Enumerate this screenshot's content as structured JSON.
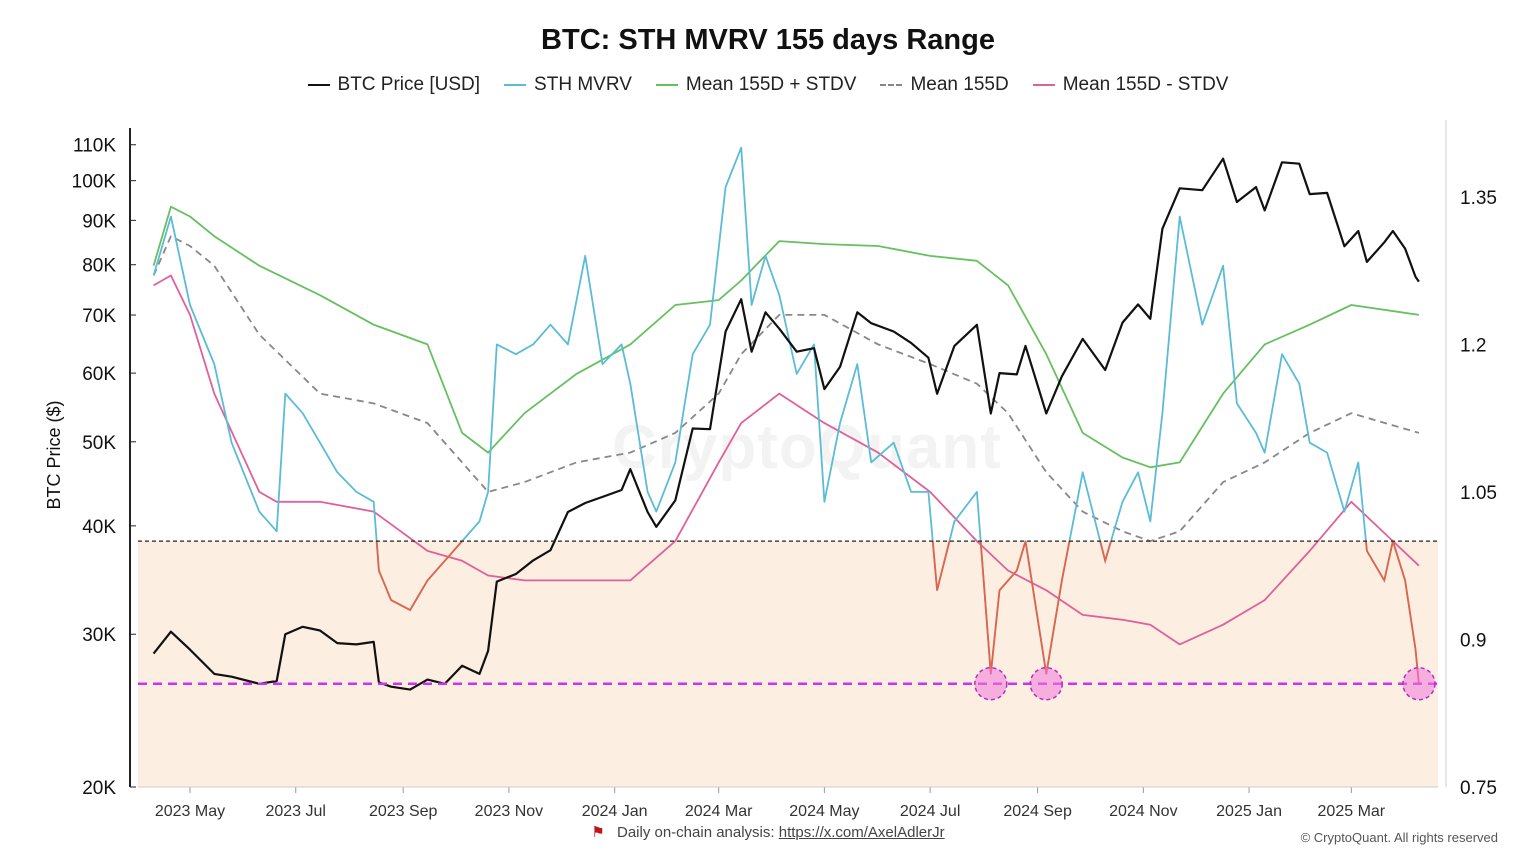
{
  "title": "BTC: STH MVRV 155 days Range",
  "legend": [
    {
      "label": "BTC Price [USD]",
      "color": "#111111",
      "dash": false
    },
    {
      "label": "STH MVRV",
      "color": "#5bbcd6",
      "dash": false
    },
    {
      "label": "Mean 155D + STDV",
      "color": "#66c060",
      "dash": false
    },
    {
      "label": "Mean 155D",
      "color": "#888888",
      "dash": true
    },
    {
      "label": "Mean 155D - STDV",
      "color": "#e0609a",
      "dash": false
    }
  ],
  "watermark": "CryptoQuant",
  "footer": {
    "text": "Daily on-chain analysis: ",
    "link": "https://x.com/AxelAdlerJr",
    "copyright": "© CryptoQuant. All rights reserved"
  },
  "chart_data": {
    "type": "line",
    "title": "BTC: STH MVRV 155 days Range",
    "ylabel": "BTC Price ($)",
    "y_scale": "log",
    "ylim": [
      20000,
      115000
    ],
    "y_ticks": [
      {
        "value": 20000,
        "label": "20K"
      },
      {
        "value": 30000,
        "label": "30K"
      },
      {
        "value": 40000,
        "label": "40K"
      },
      {
        "value": 50000,
        "label": "50K"
      },
      {
        "value": 60000,
        "label": "60K"
      },
      {
        "value": 70000,
        "label": "70K"
      },
      {
        "value": 80000,
        "label": "80K"
      },
      {
        "value": 90000,
        "label": "90K"
      },
      {
        "value": 100000,
        "label": "100K"
      },
      {
        "value": 110000,
        "label": "110K"
      }
    ],
    "y2lim": [
      0.75,
      1.42
    ],
    "y2_ticks": [
      {
        "value": 0.75,
        "label": "0.75"
      },
      {
        "value": 0.9,
        "label": "0.9"
      },
      {
        "value": 1.05,
        "label": "1.05"
      },
      {
        "value": 1.2,
        "label": "1.2"
      },
      {
        "value": 1.35,
        "label": "1.35"
      }
    ],
    "x_ticks": [
      "2023 May",
      "2023 Jul",
      "2023 Sep",
      "2023 Nov",
      "2024 Jan",
      "2024 Mar",
      "2024 May",
      "2024 Jul",
      "2024 Sep",
      "2024 Nov",
      "2025 Jan",
      "2025 Mar"
    ],
    "xlim": [
      "2023-04-01",
      "2025-04-20"
    ],
    "grid": false,
    "legend_position": "top",
    "reference_lines": [
      {
        "axis": "y2",
        "value": 1.0,
        "style": "dotted",
        "color": "#222222"
      },
      {
        "axis": "y2",
        "value": 0.855,
        "style": "dashed",
        "color": "#cc33ee"
      }
    ],
    "shaded_region": {
      "axis": "y2",
      "from": 0.75,
      "to": 1.0,
      "color": "#fcefe1"
    },
    "highlights": [
      {
        "x": "2024-08-05",
        "y2": 0.855
      },
      {
        "x": "2024-09-06",
        "y2": 0.855
      },
      {
        "x": "2025-04-09",
        "y2": 0.855
      }
    ],
    "series": [
      {
        "name": "BTC Price [USD]",
        "axis": "y",
        "color": "#111111",
        "x": [
          "2023-04-10",
          "2023-04-20",
          "2023-05-01",
          "2023-05-15",
          "2023-05-25",
          "2023-06-10",
          "2023-06-20",
          "2023-06-25",
          "2023-07-05",
          "2023-07-15",
          "2023-07-25",
          "2023-08-05",
          "2023-08-15",
          "2023-08-18",
          "2023-08-25",
          "2023-09-05",
          "2023-09-15",
          "2023-09-25",
          "2023-10-05",
          "2023-10-15",
          "2023-10-20",
          "2023-10-25",
          "2023-11-05",
          "2023-11-15",
          "2023-11-25",
          "2023-12-05",
          "2023-12-15",
          "2023-12-25",
          "2024-01-05",
          "2024-01-10",
          "2024-01-20",
          "2024-01-25",
          "2024-02-05",
          "2024-02-15",
          "2024-02-25",
          "2024-03-05",
          "2024-03-14",
          "2024-03-20",
          "2024-03-28",
          "2024-04-05",
          "2024-04-15",
          "2024-04-25",
          "2024-05-01",
          "2024-05-10",
          "2024-05-20",
          "2024-05-28",
          "2024-06-10",
          "2024-06-20",
          "2024-06-30",
          "2024-07-05",
          "2024-07-15",
          "2024-07-28",
          "2024-08-05",
          "2024-08-10",
          "2024-08-20",
          "2024-08-25",
          "2024-09-06",
          "2024-09-15",
          "2024-09-27",
          "2024-10-10",
          "2024-10-20",
          "2024-10-29",
          "2024-11-05",
          "2024-11-12",
          "2024-11-22",
          "2024-12-05",
          "2024-12-17",
          "2024-12-25",
          "2025-01-05",
          "2025-01-10",
          "2025-01-20",
          "2025-01-30",
          "2025-02-05",
          "2025-02-15",
          "2025-02-25",
          "2025-03-05",
          "2025-03-10",
          "2025-03-20",
          "2025-03-25",
          "2025-04-01",
          "2025-04-07",
          "2025-04-09"
        ],
        "values": [
          28500,
          30200,
          28800,
          27000,
          26800,
          26300,
          26500,
          30000,
          30600,
          30300,
          29300,
          29200,
          29400,
          26400,
          26100,
          25900,
          26600,
          26300,
          27600,
          27000,
          28700,
          34500,
          35200,
          36500,
          37500,
          41500,
          42500,
          43200,
          44000,
          46500,
          41500,
          39900,
          42800,
          51800,
          51700,
          67000,
          73000,
          63500,
          70500,
          67500,
          63500,
          64100,
          57500,
          61000,
          70500,
          68500,
          67000,
          65000,
          62500,
          56800,
          64500,
          68200,
          53900,
          60000,
          59800,
          64500,
          53900,
          59500,
          65700,
          60500,
          68600,
          72000,
          69300,
          88000,
          98000,
          97500,
          106000,
          94500,
          98300,
          92400,
          105000,
          104600,
          96500,
          96800,
          84000,
          87500,
          80600,
          84900,
          87500,
          83500,
          77500,
          76500
        ]
      },
      {
        "name": "STH MVRV",
        "axis": "y2",
        "color": "#5bbcd6",
        "x": [
          "2023-04-10",
          "2023-04-20",
          "2023-05-01",
          "2023-05-15",
          "2023-05-25",
          "2023-06-10",
          "2023-06-20",
          "2023-06-25",
          "2023-07-05",
          "2023-07-15",
          "2023-07-25",
          "2023-08-05",
          "2023-08-15",
          "2023-08-18",
          "2023-08-25",
          "2023-09-05",
          "2023-09-15",
          "2023-09-25",
          "2023-10-05",
          "2023-10-15",
          "2023-10-20",
          "2023-10-25",
          "2023-11-05",
          "2023-11-15",
          "2023-11-25",
          "2023-12-05",
          "2023-12-15",
          "2023-12-25",
          "2024-01-05",
          "2024-01-10",
          "2024-01-20",
          "2024-01-25",
          "2024-02-05",
          "2024-02-15",
          "2024-02-25",
          "2024-03-05",
          "2024-03-14",
          "2024-03-20",
          "2024-03-28",
          "2024-04-05",
          "2024-04-15",
          "2024-04-25",
          "2024-05-01",
          "2024-05-10",
          "2024-05-20",
          "2024-05-28",
          "2024-06-10",
          "2024-06-20",
          "2024-06-30",
          "2024-07-05",
          "2024-07-15",
          "2024-07-28",
          "2024-08-05",
          "2024-08-10",
          "2024-08-20",
          "2024-08-25",
          "2024-09-06",
          "2024-09-15",
          "2024-09-27",
          "2024-10-10",
          "2024-10-20",
          "2024-10-29",
          "2024-11-05",
          "2024-11-12",
          "2024-11-22",
          "2024-12-05",
          "2024-12-17",
          "2024-12-25",
          "2025-01-05",
          "2025-01-10",
          "2025-01-20",
          "2025-01-30",
          "2025-02-05",
          "2025-02-15",
          "2025-02-25",
          "2025-03-05",
          "2025-03-10",
          "2025-03-20",
          "2025-03-25",
          "2025-04-01",
          "2025-04-07",
          "2025-04-09"
        ],
        "values": [
          1.27,
          1.33,
          1.24,
          1.18,
          1.1,
          1.03,
          1.01,
          1.15,
          1.13,
          1.1,
          1.07,
          1.05,
          1.04,
          0.97,
          0.94,
          0.93,
          0.96,
          0.98,
          1.0,
          1.02,
          1.05,
          1.2,
          1.19,
          1.2,
          1.22,
          1.2,
          1.29,
          1.18,
          1.2,
          1.16,
          1.05,
          1.03,
          1.08,
          1.19,
          1.22,
          1.36,
          1.4,
          1.24,
          1.29,
          1.25,
          1.17,
          1.2,
          1.04,
          1.12,
          1.18,
          1.08,
          1.1,
          1.05,
          1.05,
          0.95,
          1.02,
          1.05,
          0.865,
          0.95,
          0.97,
          1.0,
          0.865,
          0.96,
          1.07,
          0.98,
          1.04,
          1.07,
          1.02,
          1.13,
          1.33,
          1.22,
          1.28,
          1.14,
          1.11,
          1.09,
          1.19,
          1.16,
          1.1,
          1.09,
          1.03,
          1.08,
          0.99,
          0.96,
          1.0,
          0.96,
          0.89,
          0.855
        ]
      },
      {
        "name": "Mean 155D + STDV",
        "axis": "y2",
        "color": "#66c060",
        "x": [
          "2023-04-10",
          "2023-04-20",
          "2023-05-01",
          "2023-05-15",
          "2023-06-10",
          "2023-07-15",
          "2023-08-15",
          "2023-09-15",
          "2023-10-05",
          "2023-10-20",
          "2023-11-10",
          "2023-12-10",
          "2024-01-10",
          "2024-02-05",
          "2024-03-01",
          "2024-03-14",
          "2024-04-05",
          "2024-05-01",
          "2024-06-01",
          "2024-07-01",
          "2024-07-28",
          "2024-08-15",
          "2024-09-06",
          "2024-09-27",
          "2024-10-20",
          "2024-11-05",
          "2024-11-22",
          "2024-12-17",
          "2025-01-10",
          "2025-02-05",
          "2025-03-01",
          "2025-04-09"
        ],
        "values": [
          1.28,
          1.34,
          1.33,
          1.31,
          1.28,
          1.25,
          1.22,
          1.2,
          1.11,
          1.09,
          1.13,
          1.17,
          1.2,
          1.24,
          1.245,
          1.265,
          1.305,
          1.302,
          1.3,
          1.29,
          1.285,
          1.26,
          1.19,
          1.11,
          1.085,
          1.075,
          1.08,
          1.15,
          1.2,
          1.22,
          1.24,
          1.23
        ]
      },
      {
        "name": "Mean 155D",
        "axis": "y2",
        "color": "#888888",
        "x": [
          "2023-04-10",
          "2023-04-20",
          "2023-05-01",
          "2023-05-15",
          "2023-06-10",
          "2023-07-15",
          "2023-08-15",
          "2023-09-15",
          "2023-10-05",
          "2023-10-20",
          "2023-11-10",
          "2023-12-10",
          "2024-01-10",
          "2024-02-05",
          "2024-03-01",
          "2024-03-14",
          "2024-04-05",
          "2024-05-01",
          "2024-06-01",
          "2024-07-01",
          "2024-07-28",
          "2024-08-15",
          "2024-09-06",
          "2024-09-27",
          "2024-10-20",
          "2024-11-05",
          "2024-11-22",
          "2024-12-17",
          "2025-01-10",
          "2025-02-05",
          "2025-03-01",
          "2025-04-09"
        ],
        "values": [
          1.27,
          1.31,
          1.3,
          1.28,
          1.21,
          1.15,
          1.14,
          1.12,
          1.08,
          1.05,
          1.06,
          1.08,
          1.09,
          1.11,
          1.15,
          1.19,
          1.23,
          1.23,
          1.2,
          1.18,
          1.16,
          1.13,
          1.07,
          1.03,
          1.01,
          1.0,
          1.01,
          1.06,
          1.08,
          1.11,
          1.13,
          1.11
        ]
      },
      {
        "name": "Mean 155D - STDV",
        "axis": "y2",
        "color": "#e0609a",
        "x": [
          "2023-04-10",
          "2023-04-20",
          "2023-05-01",
          "2023-05-15",
          "2023-06-10",
          "2023-06-20",
          "2023-07-15",
          "2023-08-15",
          "2023-09-15",
          "2023-10-05",
          "2023-10-20",
          "2023-11-10",
          "2023-12-10",
          "2024-01-10",
          "2024-02-05",
          "2024-03-01",
          "2024-03-14",
          "2024-04-05",
          "2024-05-01",
          "2024-06-01",
          "2024-07-01",
          "2024-07-28",
          "2024-08-15",
          "2024-09-06",
          "2024-09-27",
          "2024-10-20",
          "2024-11-05",
          "2024-11-22",
          "2024-12-17",
          "2025-01-10",
          "2025-02-05",
          "2025-03-01",
          "2025-04-09"
        ],
        "values": [
          1.26,
          1.27,
          1.23,
          1.15,
          1.05,
          1.04,
          1.04,
          1.03,
          0.99,
          0.98,
          0.965,
          0.96,
          0.96,
          0.96,
          1.0,
          1.08,
          1.12,
          1.15,
          1.12,
          1.09,
          1.05,
          1.0,
          0.97,
          0.95,
          0.925,
          0.92,
          0.915,
          0.895,
          0.915,
          0.94,
          0.99,
          1.04,
          0.975
        ]
      }
    ]
  }
}
